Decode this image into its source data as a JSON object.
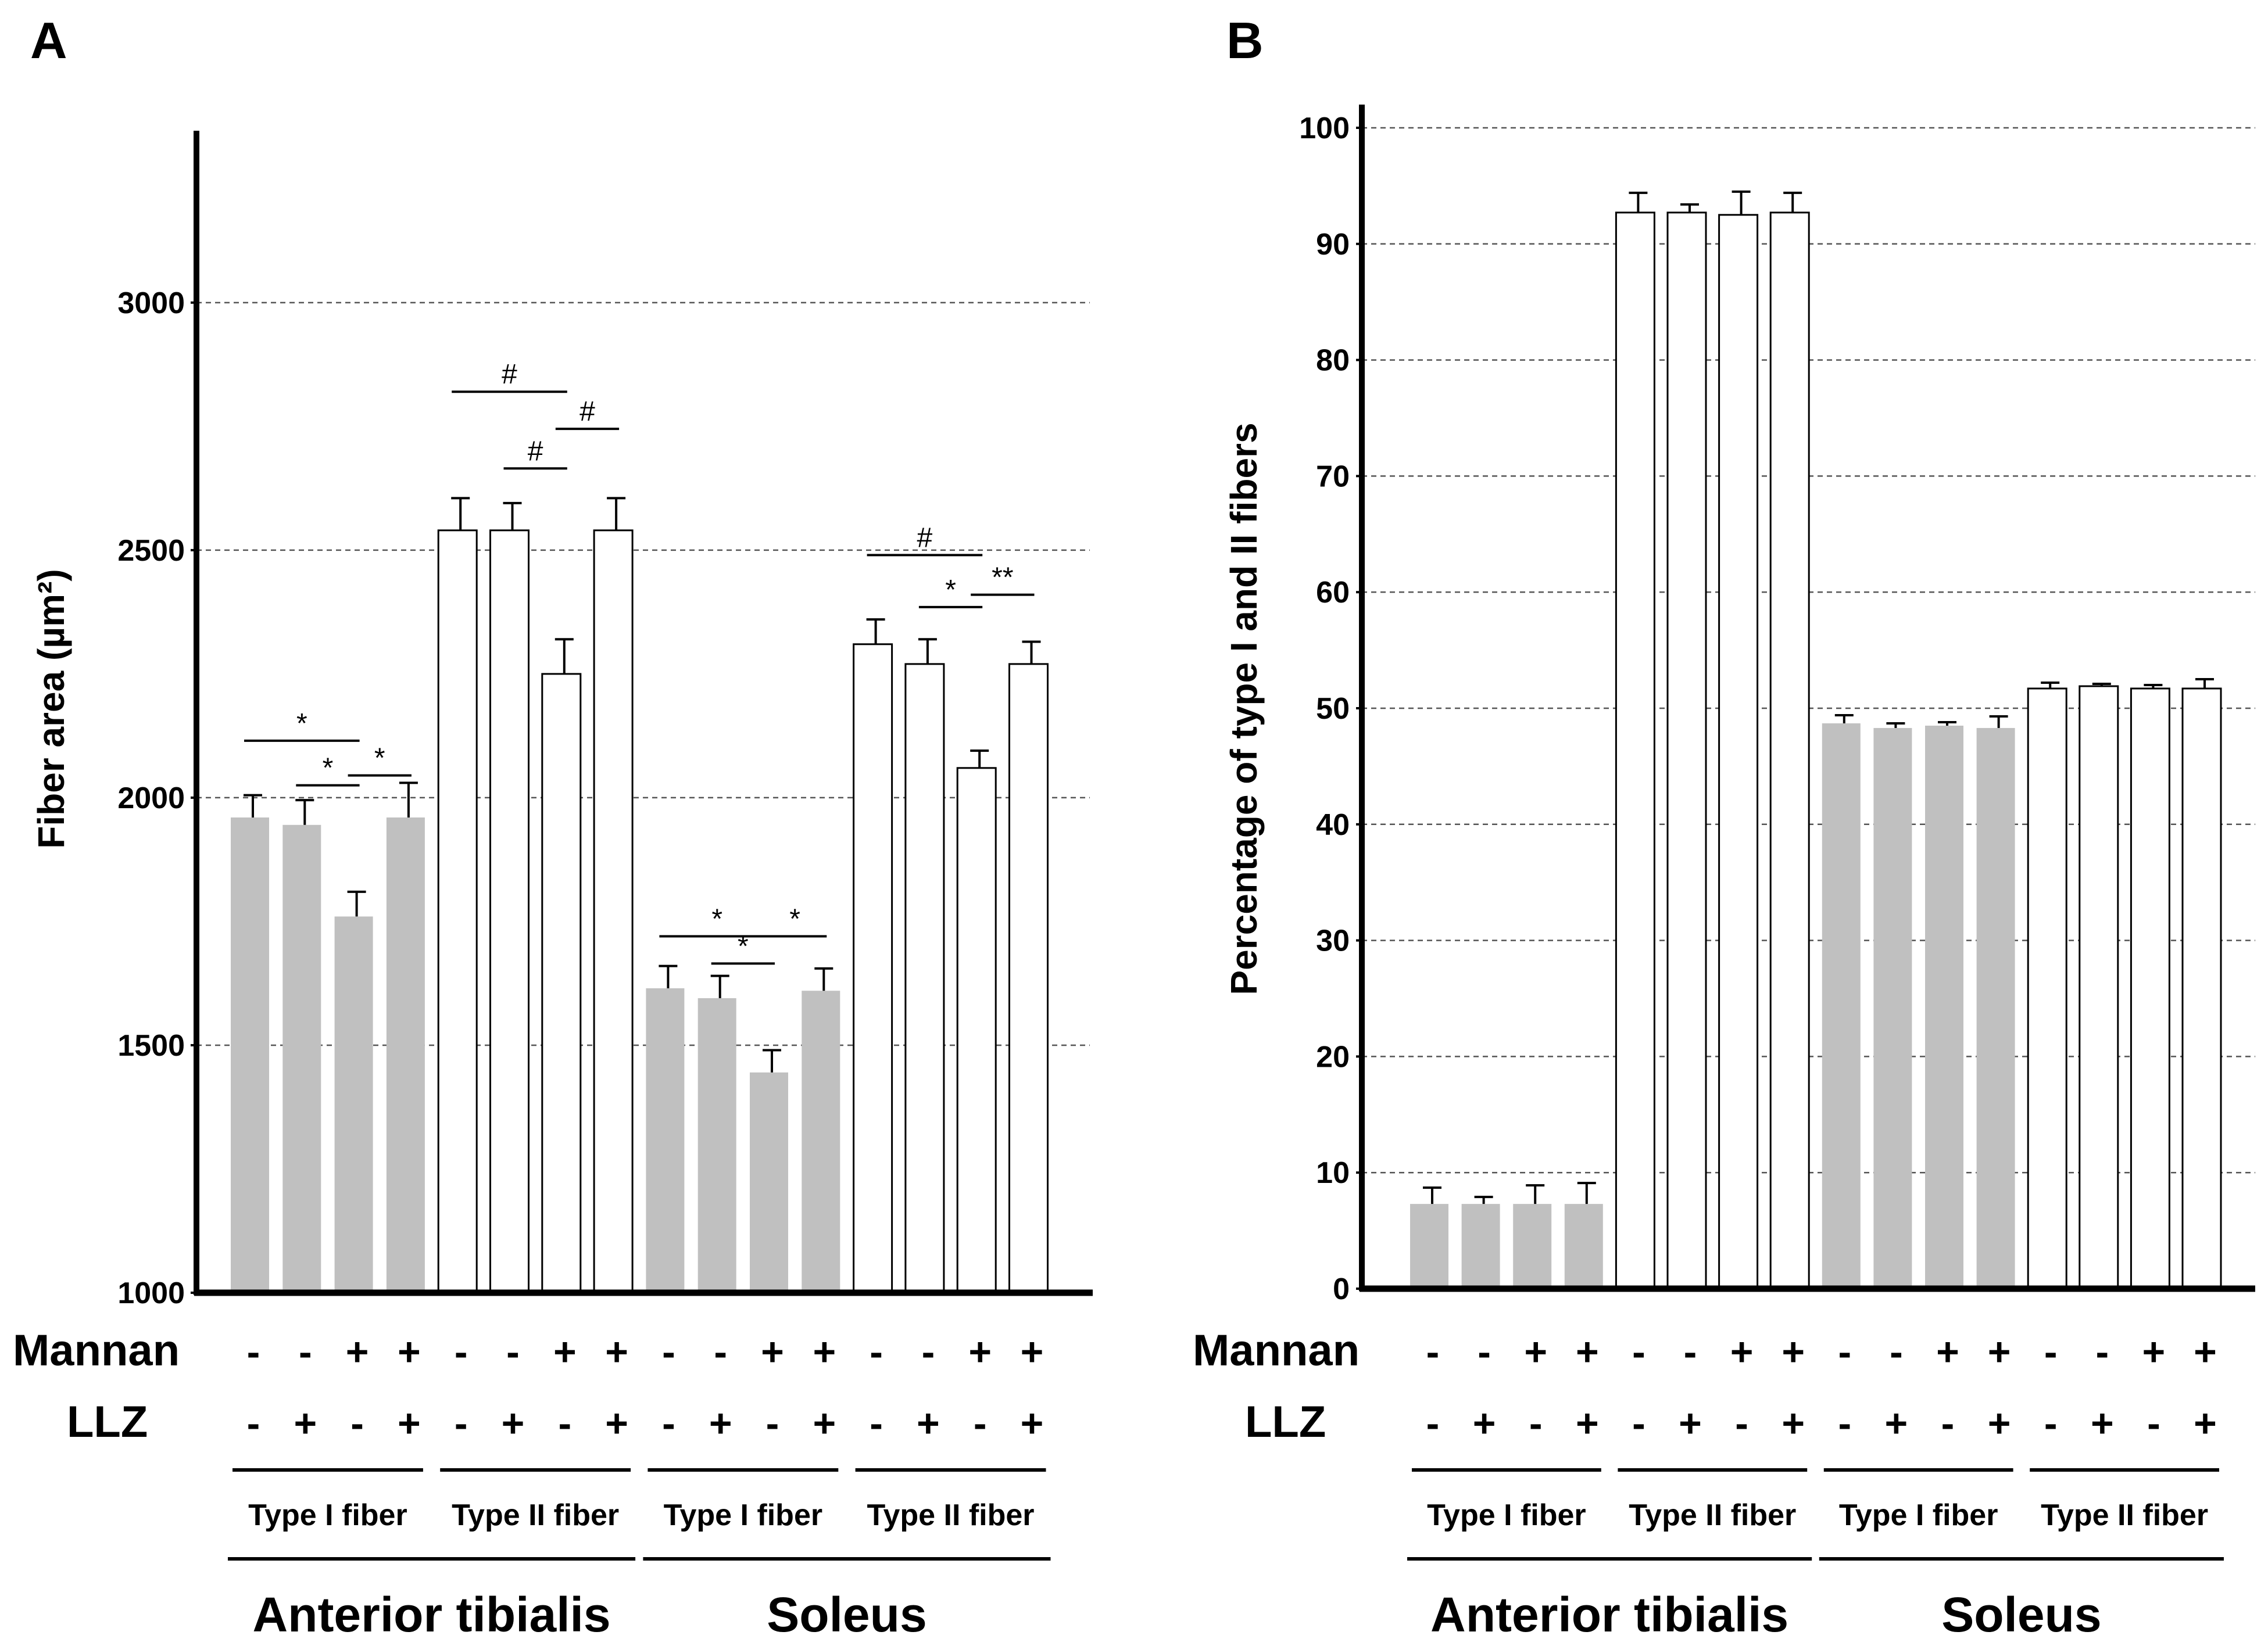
{
  "chart_data": [
    {
      "panel": "A",
      "type": "bar",
      "ylabel": "Fiber area (µm²)",
      "ylim": [
        1000,
        3400
      ],
      "yticks": [
        1000,
        1500,
        2000,
        2500,
        3000
      ],
      "grid": "dashed horizontal lines at 1500, 2000, 2500, 3000",
      "treatment_rows": {
        "Mannan": [
          "-",
          "-",
          "+",
          "+",
          "-",
          "-",
          "+",
          "+",
          "-",
          "-",
          "+",
          "+",
          "-",
          "-",
          "+",
          "+"
        ],
        "LLZ": [
          "-",
          "+",
          "-",
          "+",
          "-",
          "+",
          "-",
          "+",
          "-",
          "+",
          "-",
          "+",
          "-",
          "+",
          "-",
          "+"
        ]
      },
      "fiber_groups": [
        "Type I fiber",
        "Type II fiber",
        "Type I fiber",
        "Type II fiber"
      ],
      "muscles": [
        "Anterior tibialis",
        "Soleus"
      ],
      "bars": [
        {
          "value": 1960,
          "error": 45,
          "fill": "gray"
        },
        {
          "value": 1945,
          "error": 50,
          "fill": "gray"
        },
        {
          "value": 1760,
          "error": 50,
          "fill": "gray"
        },
        {
          "value": 1960,
          "error": 70,
          "fill": "gray"
        },
        {
          "value": 2540,
          "error": 65,
          "fill": "white"
        },
        {
          "value": 2540,
          "error": 55,
          "fill": "white"
        },
        {
          "value": 2250,
          "error": 70,
          "fill": "white"
        },
        {
          "value": 2540,
          "error": 65,
          "fill": "white"
        },
        {
          "value": 1615,
          "error": 45,
          "fill": "gray"
        },
        {
          "value": 1595,
          "error": 45,
          "fill": "gray"
        },
        {
          "value": 1445,
          "error": 45,
          "fill": "gray"
        },
        {
          "value": 1610,
          "error": 45,
          "fill": "gray"
        },
        {
          "value": 2310,
          "error": 50,
          "fill": "white"
        },
        {
          "value": 2270,
          "error": 50,
          "fill": "white"
        },
        {
          "value": 2060,
          "error": 35,
          "fill": "white"
        },
        {
          "value": 2270,
          "error": 45,
          "fill": "white"
        }
      ],
      "annotations": [
        {
          "from": 0,
          "to": 2,
          "symbol": "*",
          "level": 2115
        },
        {
          "from": 1,
          "to": 2,
          "symbol": "*",
          "level": 2025
        },
        {
          "from": 2,
          "to": 3,
          "symbol": "*",
          "level": 2045
        },
        {
          "from": 4,
          "to": 6,
          "symbol": "#",
          "level": 2820
        },
        {
          "from": 5,
          "to": 6,
          "symbol": "#",
          "level": 2665
        },
        {
          "from": 6,
          "to": 7,
          "symbol": "#",
          "level": 2745
        },
        {
          "from": 8,
          "to": 10,
          "symbol": "*",
          "level": 1720
        },
        {
          "from": 9,
          "to": 10,
          "symbol": "*",
          "level": 1665
        },
        {
          "from": 10,
          "to": 11,
          "symbol": "*",
          "level": 1720
        },
        {
          "from": 12,
          "to": 14,
          "symbol": "#",
          "level": 2490
        },
        {
          "from": 13,
          "to": 14,
          "symbol": "*",
          "level": 2385
        },
        {
          "from": 14,
          "to": 15,
          "symbol": "**",
          "level": 2410
        }
      ]
    },
    {
      "panel": "B",
      "type": "bar",
      "ylabel": "Percentage of type I and II fibers",
      "ylim": [
        0,
        102
      ],
      "yticks": [
        0,
        10,
        20,
        30,
        40,
        50,
        60,
        70,
        80,
        90,
        100
      ],
      "grid": "dashed horizontal lines at every 10",
      "treatment_rows": {
        "Mannan": [
          "-",
          "-",
          "+",
          "+",
          "-",
          "-",
          "+",
          "+",
          "-",
          "-",
          "+",
          "+",
          "-",
          "-",
          "+",
          "+"
        ],
        "LLZ": [
          "-",
          "+",
          "-",
          "+",
          "-",
          "+",
          "-",
          "+",
          "-",
          "+",
          "-",
          "+",
          "-",
          "+",
          "-",
          "+"
        ]
      },
      "fiber_groups": [
        "Type I fiber",
        "Type II fiber",
        "Type I fiber",
        "Type II fiber"
      ],
      "muscles": [
        "Anterior tibialis",
        "Soleus"
      ],
      "bars": [
        {
          "value": 7.3,
          "error": 1.4,
          "fill": "gray"
        },
        {
          "value": 7.3,
          "error": 0.6,
          "fill": "gray"
        },
        {
          "value": 7.3,
          "error": 1.6,
          "fill": "gray"
        },
        {
          "value": 7.3,
          "error": 1.8,
          "fill": "gray"
        },
        {
          "value": 92.7,
          "error": 1.7,
          "fill": "white"
        },
        {
          "value": 92.7,
          "error": 0.7,
          "fill": "white"
        },
        {
          "value": 92.5,
          "error": 2.0,
          "fill": "white"
        },
        {
          "value": 92.7,
          "error": 1.7,
          "fill": "white"
        },
        {
          "value": 48.7,
          "error": 0.7,
          "fill": "gray"
        },
        {
          "value": 48.3,
          "error": 0.4,
          "fill": "gray"
        },
        {
          "value": 48.5,
          "error": 0.3,
          "fill": "gray"
        },
        {
          "value": 48.3,
          "error": 1.0,
          "fill": "gray"
        },
        {
          "value": 51.7,
          "error": 0.5,
          "fill": "white"
        },
        {
          "value": 51.9,
          "error": 0.2,
          "fill": "white"
        },
        {
          "value": 51.7,
          "error": 0.3,
          "fill": "white"
        },
        {
          "value": 51.7,
          "error": 0.8,
          "fill": "white"
        }
      ]
    }
  ],
  "labels": {
    "panel_a": "A",
    "panel_b": "B",
    "mannan": "Mannan",
    "llz": "LLZ"
  },
  "colors": {
    "gray_bar": "#c0c0c0",
    "white_bar": "#ffffff",
    "axis": "#000000",
    "grid": "#555555"
  }
}
